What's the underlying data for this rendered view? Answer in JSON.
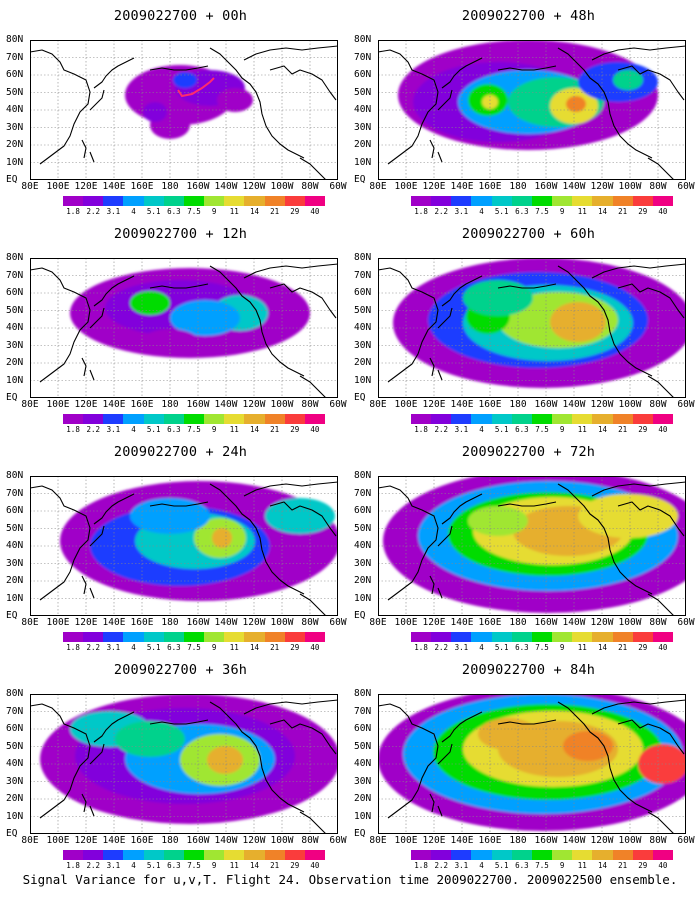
{
  "footer": "Signal Variance for u,v,T. Flight 24. Observation time 2009022700. 2009022500 ensemble.",
  "lat_labels": [
    "80N",
    "70N",
    "60N",
    "50N",
    "40N",
    "30N",
    "20N",
    "10N",
    "EQ"
  ],
  "lon_labels": [
    "80E",
    "100E",
    "120E",
    "140E",
    "160E",
    "180",
    "160W",
    "140W",
    "120W",
    "100W",
    "80W",
    "60W"
  ],
  "colorbar": {
    "labels": [
      "1.8",
      "2.2",
      "3.1",
      "4",
      "5.1",
      "6.3",
      "7.5",
      "9",
      "11",
      "14",
      "21",
      "29",
      "40"
    ],
    "colors": [
      "#a000c8",
      "#8200dc",
      "#1e3cff",
      "#00a0ff",
      "#00c8c8",
      "#00d28c",
      "#00dc00",
      "#a0e632",
      "#e6dc32",
      "#e6af2d",
      "#f08228",
      "#fa3c3c",
      "#f00082"
    ]
  },
  "panels": [
    {
      "id": "00h",
      "title": "2009022700 + 00h",
      "col": 0,
      "row": 0
    },
    {
      "id": "48h",
      "title": "2009022700 + 48h",
      "col": 1,
      "row": 0
    },
    {
      "id": "12h",
      "title": "2009022700 + 12h",
      "col": 0,
      "row": 1
    },
    {
      "id": "60h",
      "title": "2009022700 + 60h",
      "col": 1,
      "row": 1
    },
    {
      "id": "24h",
      "title": "2009022700 + 24h",
      "col": 0,
      "row": 2
    },
    {
      "id": "72h",
      "title": "2009022700 + 72h",
      "col": 1,
      "row": 2
    },
    {
      "id": "36h",
      "title": "2009022700 + 36h",
      "col": 0,
      "row": 3
    },
    {
      "id": "84h",
      "title": "2009022700 + 84h",
      "col": 1,
      "row": 3
    }
  ]
}
